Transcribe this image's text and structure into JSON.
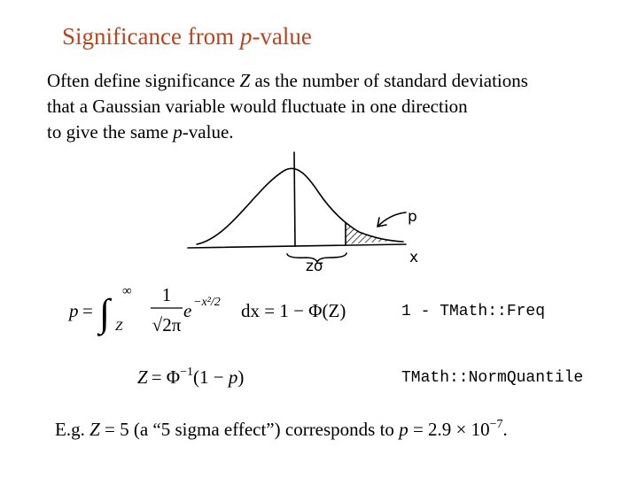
{
  "title": [
    "Significance from ",
    "p",
    "-value"
  ],
  "intro": [
    [
      "Often define significance ",
      "Z",
      " as the number of standard deviations"
    ],
    [
      "that a Gaussian variable would fluctuate in one direction"
    ],
    [
      "to give the same ",
      "p",
      "-value."
    ]
  ],
  "sketch": {
    "tail_label": "p",
    "distance_label": "zσ",
    "axis_label": "x"
  },
  "formula1": {
    "lhs": "p",
    "equals": "=",
    "integral": "∫",
    "upper": "∞",
    "lower": "Z",
    "numerator": "1",
    "denominator": "√2π",
    "base": "e",
    "exponent": "−x²/2",
    "rest": "dx = 1 − Φ(Z)",
    "code": "1 - TMath::Freq"
  },
  "formula2": {
    "lhs": "Z",
    "equals": "= Φ",
    "exponent": "−1",
    "rest": "(1 − ",
    "p": "p",
    "close": ")",
    "code": "TMath::NormQuantile"
  },
  "footer": [
    "E.g. ",
    "Z",
    " = 5 (a “5 sigma effect”) corresponds to ",
    "p",
    " = 2.9 × 10",
    "−7",
    "."
  ]
}
